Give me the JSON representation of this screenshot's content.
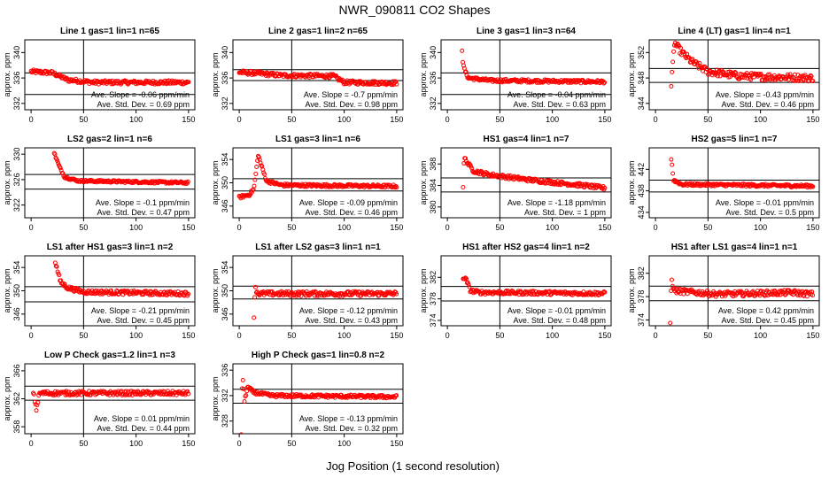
{
  "figure": {
    "title": "NWR_090811  CO2 Shapes",
    "xlabel": "Jog Position (1 second resolution)",
    "panel_ylabel": "approx. ppm",
    "slope_prefix": "Ave. Slope =",
    "slope_unit": "ppm/min",
    "std_prefix": "Ave. Std. Dev. =",
    "std_unit": "ppm",
    "point_color": "#ff0000",
    "line_color": "#000000"
  },
  "chart_data": [
    {
      "type": "scatter",
      "title": "Line 1 gas=1 lin=1 n=65",
      "ylim": [
        331,
        342
      ],
      "yticks": [
        332,
        336,
        340
      ],
      "hlines": [
        336.8,
        333.4
      ],
      "vline": 50,
      "xlim": [
        -6,
        156
      ],
      "xticks": [
        0,
        50,
        100,
        150
      ],
      "slope": "-0.06",
      "std": "0.69",
      "series": [
        {
          "kind": "segments",
          "x0": 0,
          "x1": 150,
          "segments": [
            [
              0,
              337.0
            ],
            [
              20,
              336.8
            ],
            [
              35,
              335.7
            ],
            [
              60,
              335.3
            ],
            [
              150,
              335.3
            ]
          ],
          "noise": 0.3
        }
      ]
    },
    {
      "type": "scatter",
      "title": "Line 2 gas=1 lin=2 n=65",
      "ylim": [
        331,
        342
      ],
      "yticks": [
        332,
        336,
        340
      ],
      "hlines": [
        337.3,
        335.6
      ],
      "vline": 50,
      "xlim": [
        -6,
        156
      ],
      "xticks": [
        0,
        50,
        100,
        150
      ],
      "slope": "-0.7",
      "std": "0.98",
      "series": [
        {
          "kind": "segments",
          "x0": 0,
          "x1": 150,
          "segments": [
            [
              0,
              336.9
            ],
            [
              20,
              336.7
            ],
            [
              40,
              336.4
            ],
            [
              90,
              336.3
            ],
            [
              100,
              335.3
            ],
            [
              150,
              335.2
            ]
          ],
          "noise": 0.3
        }
      ]
    },
    {
      "type": "scatter",
      "title": "Line 3 gas=1 lin=3 n=64",
      "ylim": [
        331,
        342
      ],
      "yticks": [
        332,
        336,
        340
      ],
      "hlines": [
        336.8,
        333.4
      ],
      "vline": 50,
      "xlim": [
        -6,
        156
      ],
      "xticks": [
        0,
        50,
        100,
        150
      ],
      "slope": "-0.04",
      "std": "0.63",
      "series": [
        {
          "kind": "segments",
          "x0": 14,
          "x1": 150,
          "segments": [
            [
              14,
              340.5
            ],
            [
              15,
              338.0
            ],
            [
              17,
              337.0
            ],
            [
              20,
              336.0
            ],
            [
              40,
              335.6
            ],
            [
              150,
              335.4
            ]
          ],
          "noise": 0.25
        }
      ]
    },
    {
      "type": "scatter",
      "title": "Line 4 (LT) gas=1 lin=4 n=1",
      "ylim": [
        343,
        354
      ],
      "yticks": [
        344,
        348,
        352
      ],
      "hlines": [
        349.5,
        347.3
      ],
      "vline": 50,
      "xlim": [
        -6,
        156
      ],
      "xticks": [
        0,
        50,
        100,
        150
      ],
      "slope": "-0.43",
      "std": "0.46",
      "series": [
        {
          "kind": "segments",
          "x0": 15,
          "x1": 150,
          "segments": [
            [
              15,
              346.7
            ],
            [
              18,
              353.5
            ],
            [
              25,
              352.0
            ],
            [
              35,
              350.5
            ],
            [
              50,
              349.0
            ],
            [
              80,
              348.3
            ],
            [
              150,
              348.0
            ]
          ],
          "noise": 0.55
        }
      ]
    },
    {
      "type": "scatter",
      "title": "LS2 gas=2 lin=1 n=6",
      "ylim": [
        320,
        331
      ],
      "yticks": [
        322,
        326,
        330
      ],
      "hlines": [
        326.8,
        324.5
      ],
      "vline": 50,
      "xlim": [
        -6,
        156
      ],
      "xticks": [
        0,
        50,
        100,
        150
      ],
      "slope": "-0.1",
      "std": "0.47",
      "series": [
        {
          "kind": "segments",
          "x0": 22,
          "x1": 150,
          "segments": [
            [
              22,
              330.2
            ],
            [
              27,
              328.0
            ],
            [
              32,
              326.4
            ],
            [
              45,
              325.8
            ],
            [
              150,
              325.5
            ]
          ],
          "noise": 0.18
        }
      ]
    },
    {
      "type": "scatter",
      "title": "LS1 gas=3 lin=1 n=6",
      "ylim": [
        344,
        356
      ],
      "yticks": [
        346,
        350,
        354
      ],
      "hlines": [
        350.7,
        348.6
      ],
      "vline": 50,
      "xlim": [
        -6,
        156
      ],
      "xticks": [
        0,
        50,
        100,
        150
      ],
      "slope": "-0.09",
      "std": "0.46",
      "series": [
        {
          "kind": "segments",
          "x0": 0,
          "x1": 150,
          "segments": [
            [
              0,
              347.5
            ],
            [
              10,
              348.0
            ],
            [
              14,
              349.0
            ],
            [
              18,
              354.8
            ],
            [
              21,
              353.0
            ],
            [
              26,
              350.3
            ],
            [
              40,
              349.6
            ],
            [
              150,
              349.4
            ]
          ],
          "noise": 0.25
        }
      ]
    },
    {
      "type": "scatter",
      "title": "HS1 gas=4 lin=1 n=7",
      "ylim": [
        378,
        391
      ],
      "yticks": [
        380,
        384,
        388
      ],
      "hlines": [
        385.4,
        382.8
      ],
      "vline": 50,
      "xlim": [
        -6,
        156
      ],
      "xticks": [
        0,
        50,
        100,
        150
      ],
      "slope": "-1.18",
      "std": "1",
      "series": [
        {
          "kind": "segments",
          "x0": 15,
          "x1": 150,
          "segments": [
            [
              15,
              383.8
            ],
            [
              16,
              389.2
            ],
            [
              20,
              388.0
            ],
            [
              25,
              386.7
            ],
            [
              40,
              386.0
            ],
            [
              80,
              385.0
            ],
            [
              130,
              384.0
            ],
            [
              150,
              383.5
            ]
          ],
          "noise": 0.35
        }
      ]
    },
    {
      "type": "scatter",
      "title": "HS2 gas=5 lin=1 n=7",
      "ylim": [
        433,
        446
      ],
      "yticks": [
        434,
        438,
        442
      ],
      "hlines": [
        440.0,
        437.8
      ],
      "vline": 50,
      "xlim": [
        -6,
        156
      ],
      "xticks": [
        0,
        50,
        100,
        150
      ],
      "slope": "-0.01",
      "std": "0.5",
      "series": [
        {
          "kind": "segments",
          "x0": 15,
          "x1": 150,
          "segments": [
            [
              15,
              444.0
            ],
            [
              16,
              442.5
            ],
            [
              17,
              440.0
            ],
            [
              25,
              439.2
            ],
            [
              150,
              438.9
            ]
          ],
          "noise": 0.25
        }
      ]
    },
    {
      "type": "scatter",
      "title": "LS1 after HS1 gas=3 lin=1 n=2",
      "ylim": [
        344,
        356
      ],
      "yticks": [
        346,
        350,
        354
      ],
      "hlines": [
        350.7,
        348.1
      ],
      "vline": 50,
      "xlim": [
        -6,
        156
      ],
      "xticks": [
        0,
        50,
        100,
        150
      ],
      "slope": "-0.21",
      "std": "0.45",
      "series": [
        {
          "kind": "segments",
          "x0": 23,
          "x1": 150,
          "segments": [
            [
              23,
              355.0
            ],
            [
              28,
              351.5
            ],
            [
              35,
              350.5
            ],
            [
              50,
              349.8
            ],
            [
              150,
              349.5
            ]
          ],
          "noise": 0.35
        }
      ]
    },
    {
      "type": "scatter",
      "title": "LS1 after LS2 gas=3 lin=1 n=1",
      "ylim": [
        344,
        356
      ],
      "yticks": [
        346,
        350,
        354
      ],
      "hlines": [
        350.8,
        348.6
      ],
      "vline": 50,
      "xlim": [
        -6,
        156
      ],
      "xticks": [
        0,
        50,
        100,
        150
      ],
      "slope": "-0.12",
      "std": "0.43",
      "series": [
        {
          "kind": "segments",
          "x0": 14,
          "x1": 150,
          "segments": [
            [
              14,
              345.5
            ],
            [
              15,
              350.5
            ],
            [
              18,
              349.5
            ],
            [
              150,
              349.5
            ]
          ],
          "noise": 0.4
        }
      ]
    },
    {
      "type": "scatter",
      "title": "HS1 after HS2 gas=4 lin=1 n=2",
      "ylim": [
        373,
        386
      ],
      "yticks": [
        374,
        378,
        382
      ],
      "hlines": [
        380.3,
        377.6
      ],
      "vline": 50,
      "xlim": [
        -6,
        156
      ],
      "xticks": [
        0,
        50,
        100,
        150
      ],
      "slope": "-0.01",
      "std": "0.48",
      "series": [
        {
          "kind": "segments",
          "x0": 15,
          "x1": 150,
          "segments": [
            [
              15,
              382.0
            ],
            [
              18,
              381.5
            ],
            [
              22,
              379.5
            ],
            [
              30,
              379.2
            ],
            [
              150,
              379.0
            ]
          ],
          "noise": 0.35
        }
      ]
    },
    {
      "type": "scatter",
      "title": "HS1 after LS1 gas=4 lin=1 n=1",
      "ylim": [
        373,
        385
      ],
      "yticks": [
        374,
        378,
        382
      ],
      "hlines": [
        379.8,
        377.3
      ],
      "vline": 50,
      "xlim": [
        -6,
        156
      ],
      "xticks": [
        0,
        50,
        100,
        150
      ],
      "slope": "0.42",
      "std": "0.45",
      "series": [
        {
          "kind": "segments",
          "x0": 14,
          "x1": 150,
          "segments": [
            [
              14,
              373.5
            ],
            [
              15,
              381.0
            ],
            [
              18,
              379.0
            ],
            [
              60,
              378.4
            ],
            [
              130,
              378.7
            ],
            [
              150,
              378.4
            ]
          ],
          "noise": 0.45
        }
      ]
    },
    {
      "type": "scatter",
      "title": "Low P Check gas=1.2 lin=1 n=3",
      "ylim": [
        357,
        367
      ],
      "yticks": [
        358,
        362,
        366
      ],
      "hlines": [
        363.8,
        361.8
      ],
      "vline": 50,
      "xlim": [
        -6,
        156
      ],
      "xticks": [
        0,
        50,
        100,
        150
      ],
      "slope": "0.01",
      "std": "0.44",
      "series": [
        {
          "kind": "segments",
          "x0": 2,
          "x1": 150,
          "segments": [
            [
              2,
              363.0
            ],
            [
              5,
              360.5
            ],
            [
              8,
              362.8
            ],
            [
              150,
              362.8
            ]
          ],
          "noise": 0.3
        }
      ]
    },
    {
      "type": "scatter",
      "title": "High P Check gas=1 lin=0.8 n=2",
      "ylim": [
        326,
        337
      ],
      "yticks": [
        328,
        332,
        336
      ],
      "hlines": [
        333.0,
        330.8
      ],
      "vline": 50,
      "xlim": [
        -6,
        156
      ],
      "xticks": [
        0,
        50,
        100,
        150
      ],
      "slope": "-0.13",
      "std": "0.32",
      "series": [
        {
          "kind": "segments",
          "x0": 2,
          "x1": 150,
          "segments": [
            [
              2,
              326.0
            ],
            [
              3,
              335.5
            ],
            [
              5,
              331.2
            ],
            [
              8,
              333.3
            ],
            [
              14,
              332.5
            ],
            [
              30,
              332.0
            ],
            [
              150,
              331.8
            ]
          ],
          "noise": 0.25
        }
      ]
    }
  ]
}
